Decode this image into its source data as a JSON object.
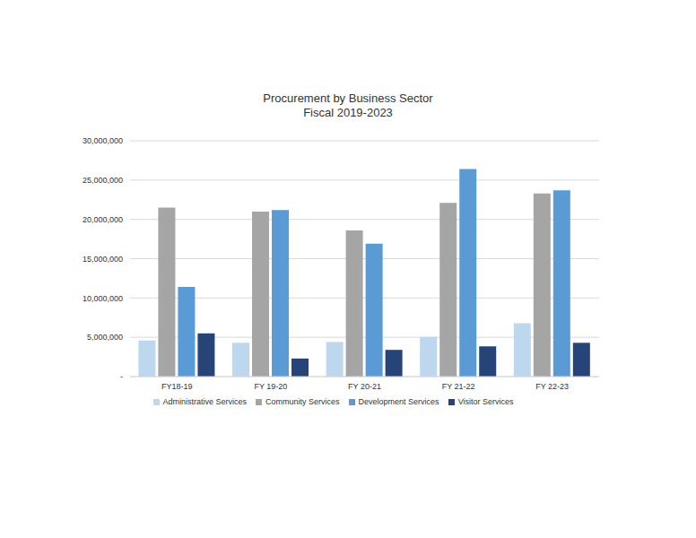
{
  "chart_data": {
    "type": "bar",
    "title": "Procurement by Business Sector",
    "subtitle": "Fiscal 2019-2023",
    "categories": [
      "FY18-19",
      "FY 19-20",
      "FY 20-21",
      "FY 21-22",
      "FY 22-23"
    ],
    "series": [
      {
        "name": "Administrative Services",
        "color": "#bdd7ee",
        "values": [
          4600000,
          4300000,
          4400000,
          5050000,
          6800000
        ]
      },
      {
        "name": "Community Services",
        "color": "#a5a5a5",
        "values": [
          21500000,
          21000000,
          18600000,
          22100000,
          23300000
        ]
      },
      {
        "name": "Development Services",
        "color": "#5b9bd5",
        "values": [
          11400000,
          21200000,
          16900000,
          26400000,
          23700000
        ]
      },
      {
        "name": "Visitor Services",
        "color": "#264478",
        "values": [
          5500000,
          2300000,
          3400000,
          3850000,
          4300000
        ]
      }
    ],
    "ylim": [
      0,
      30000000
    ],
    "yticks": [
      {
        "value": 0,
        "label": "-"
      },
      {
        "value": 5000000,
        "label": "5,000,000"
      },
      {
        "value": 10000000,
        "label": "10,000,000"
      },
      {
        "value": 15000000,
        "label": "15,000,000"
      },
      {
        "value": 20000000,
        "label": "20,000,000"
      },
      {
        "value": 25000000,
        "label": "25,000,000"
      },
      {
        "value": 30000000,
        "label": "30,000,000"
      }
    ],
    "grid": true,
    "legend": "bottom"
  }
}
